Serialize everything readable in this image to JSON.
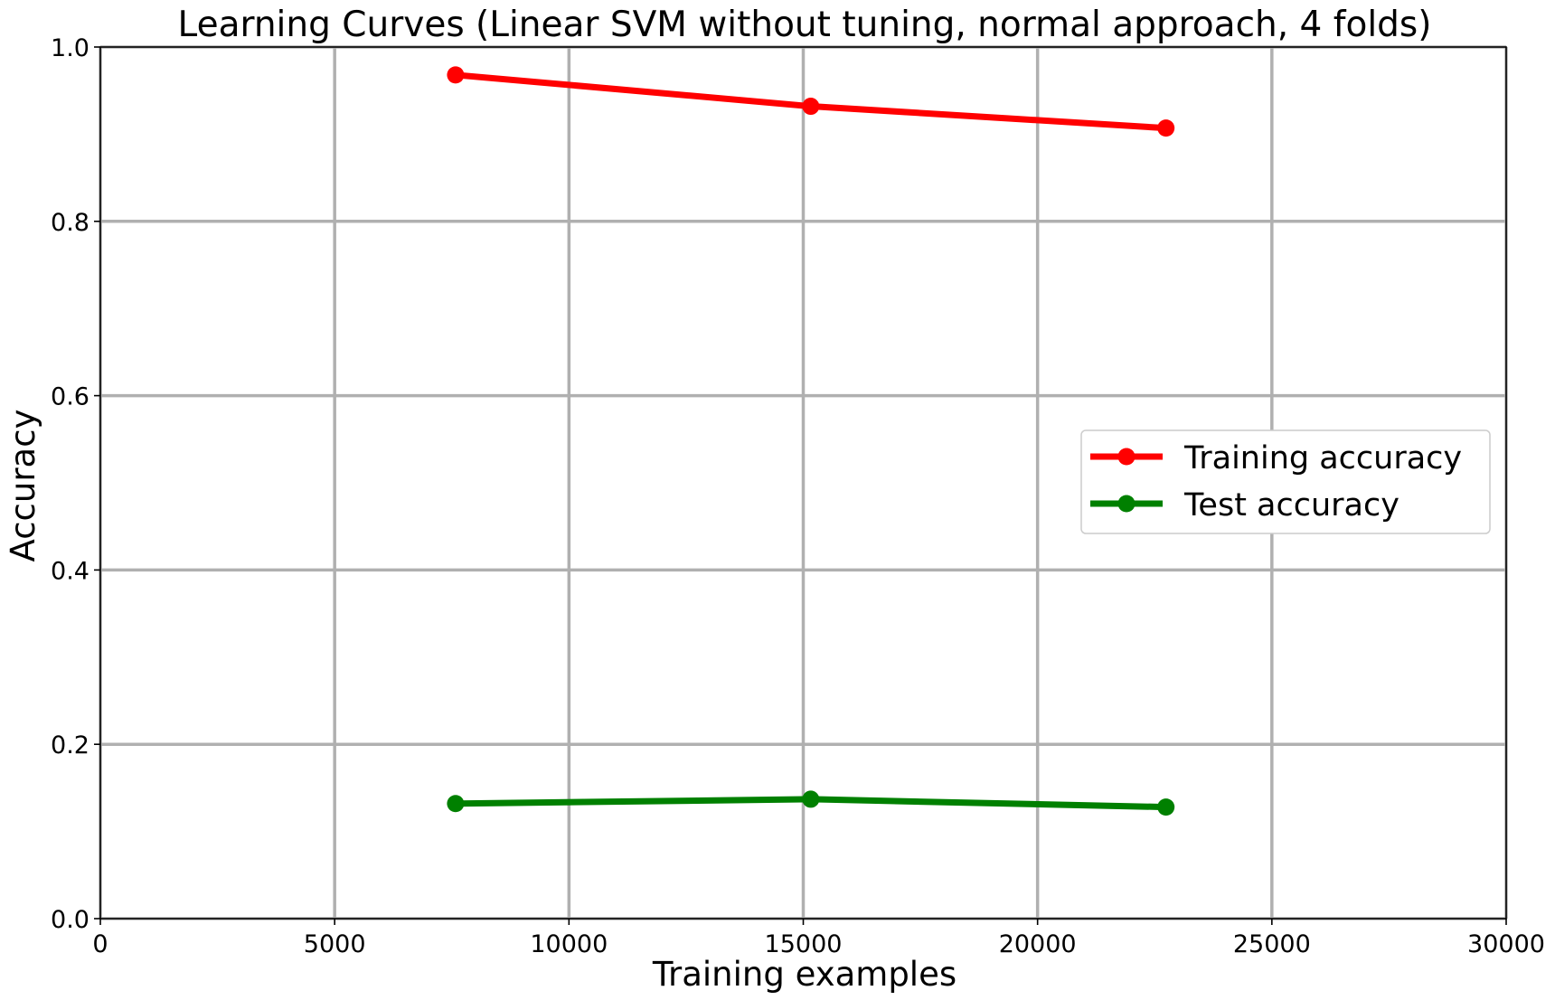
{
  "chart_data": {
    "type": "line",
    "title": "Learning Curves (Linear SVM without tuning, normal approach, 4 folds)",
    "xlabel": "Training examples",
    "ylabel": "Accuracy",
    "xlim": [
      0,
      30000
    ],
    "ylim": [
      0.0,
      1.0
    ],
    "xticks": [
      0,
      5000,
      10000,
      15000,
      20000,
      25000,
      30000
    ],
    "xtick_labels": [
      "0",
      "5000",
      "10000",
      "15000",
      "20000",
      "25000",
      "30000"
    ],
    "yticks": [
      0.0,
      0.2,
      0.4,
      0.6,
      0.8,
      1.0
    ],
    "ytick_labels": [
      "0.0",
      "0.2",
      "0.4",
      "0.6",
      "0.8",
      "1.0"
    ],
    "grid": true,
    "legend_position": "center-right",
    "x": [
      7580,
      15160,
      22740
    ],
    "series": [
      {
        "name": "Training accuracy",
        "color": "#ff0000",
        "marker": "circle",
        "values": [
          0.968,
          0.932,
          0.907
        ]
      },
      {
        "name": "Test accuracy",
        "color": "#008000",
        "marker": "circle",
        "values": [
          0.132,
          0.137,
          0.128
        ]
      }
    ]
  }
}
